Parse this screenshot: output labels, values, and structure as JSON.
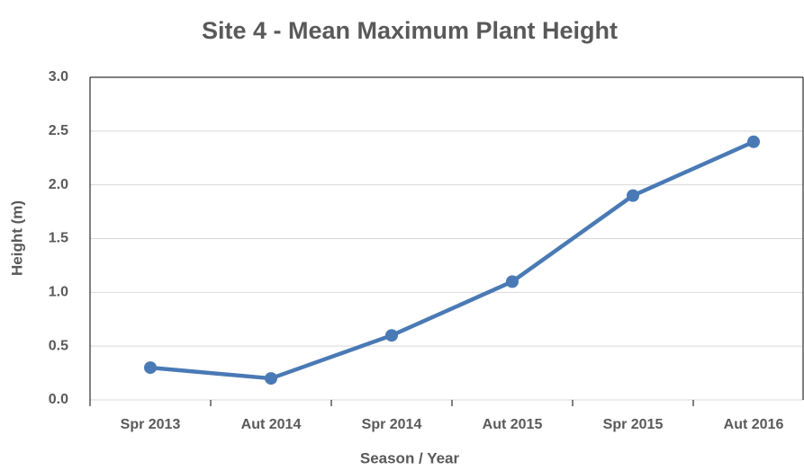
{
  "chart_data": {
    "type": "line",
    "title": "Site 4 - Mean Maximum Plant Height",
    "x_label": "Season / Year",
    "y_label": "Height (m)",
    "categories": [
      "Spr 2013",
      "Aut 2014",
      "Spr 2014",
      "Aut 2015",
      "Spr 2015",
      "Aut 2016"
    ],
    "series": [
      {
        "name": "Height",
        "color": "#4a7ab5",
        "values": [
          0.3,
          0.2,
          0.6,
          1.1,
          1.9,
          2.4
        ]
      }
    ],
    "ylim": [
      0,
      3
    ],
    "yticks": [
      {
        "value": 0,
        "label": "0.0"
      },
      {
        "value": 0.5,
        "label": "0.5"
      },
      {
        "value": 1,
        "label": "1.0"
      },
      {
        "value": 1.5,
        "label": "1.5"
      },
      {
        "value": 2,
        "label": "2.0"
      },
      {
        "value": 2.5,
        "label": "2.5"
      },
      {
        "value": 3,
        "label": "3.0"
      }
    ],
    "grid": true
  }
}
